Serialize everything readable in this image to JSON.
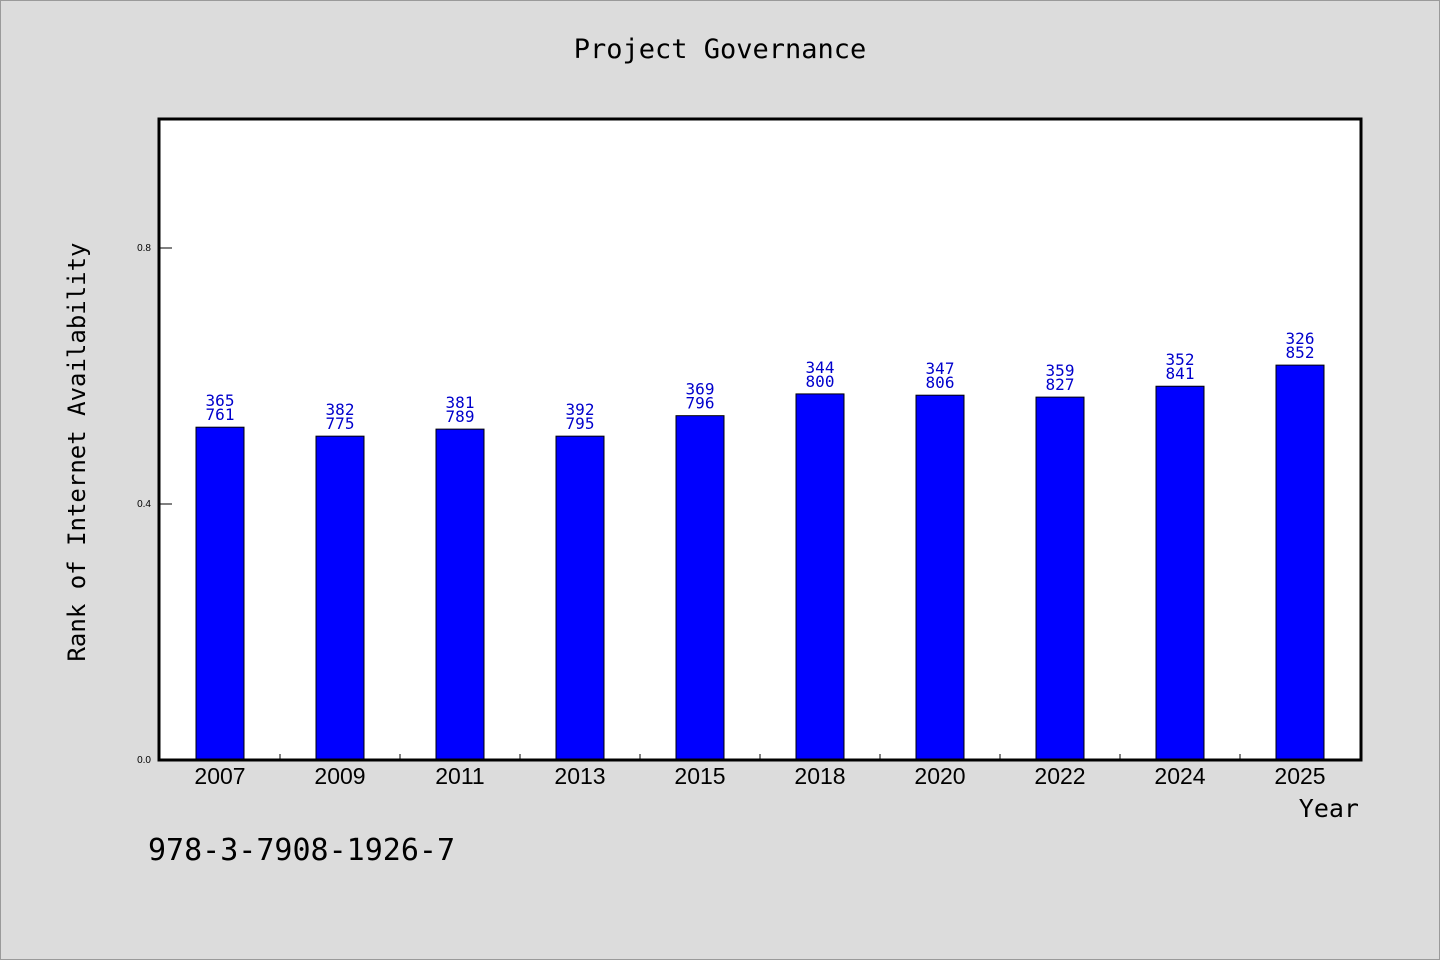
{
  "chart_data": {
    "type": "bar",
    "title": "Project Governance",
    "xlabel": "Year",
    "ylabel": "Rank of Internet Availability",
    "categories": [
      "2007",
      "2009",
      "2011",
      "2013",
      "2015",
      "2018",
      "2020",
      "2022",
      "2024",
      "2025"
    ],
    "values": [
      0.52,
      0.506,
      0.517,
      0.506,
      0.538,
      0.572,
      0.57,
      0.567,
      0.584,
      0.617
    ],
    "bar_labels": [
      [
        "365",
        "761"
      ],
      [
        "382",
        "775"
      ],
      [
        "381",
        "789"
      ],
      [
        "392",
        "795"
      ],
      [
        "369",
        "796"
      ],
      [
        "344",
        "800"
      ],
      [
        "347",
        "806"
      ],
      [
        "359",
        "827"
      ],
      [
        "352",
        "841"
      ],
      [
        "326",
        "852"
      ]
    ],
    "ylim": [
      0,
      1.0
    ],
    "yticks": [
      0.0,
      0.4,
      0.8
    ],
    "ytick_labels": [
      "0.0",
      "0.4",
      "0.8"
    ],
    "grid": false,
    "colors": {
      "bar": "#0000ff",
      "bar_label": "#0000cc",
      "background": "#dcdcdc",
      "plot_bg": "#ffffff"
    }
  },
  "footer": {
    "isbn": "978-3-7908-1926-7"
  }
}
